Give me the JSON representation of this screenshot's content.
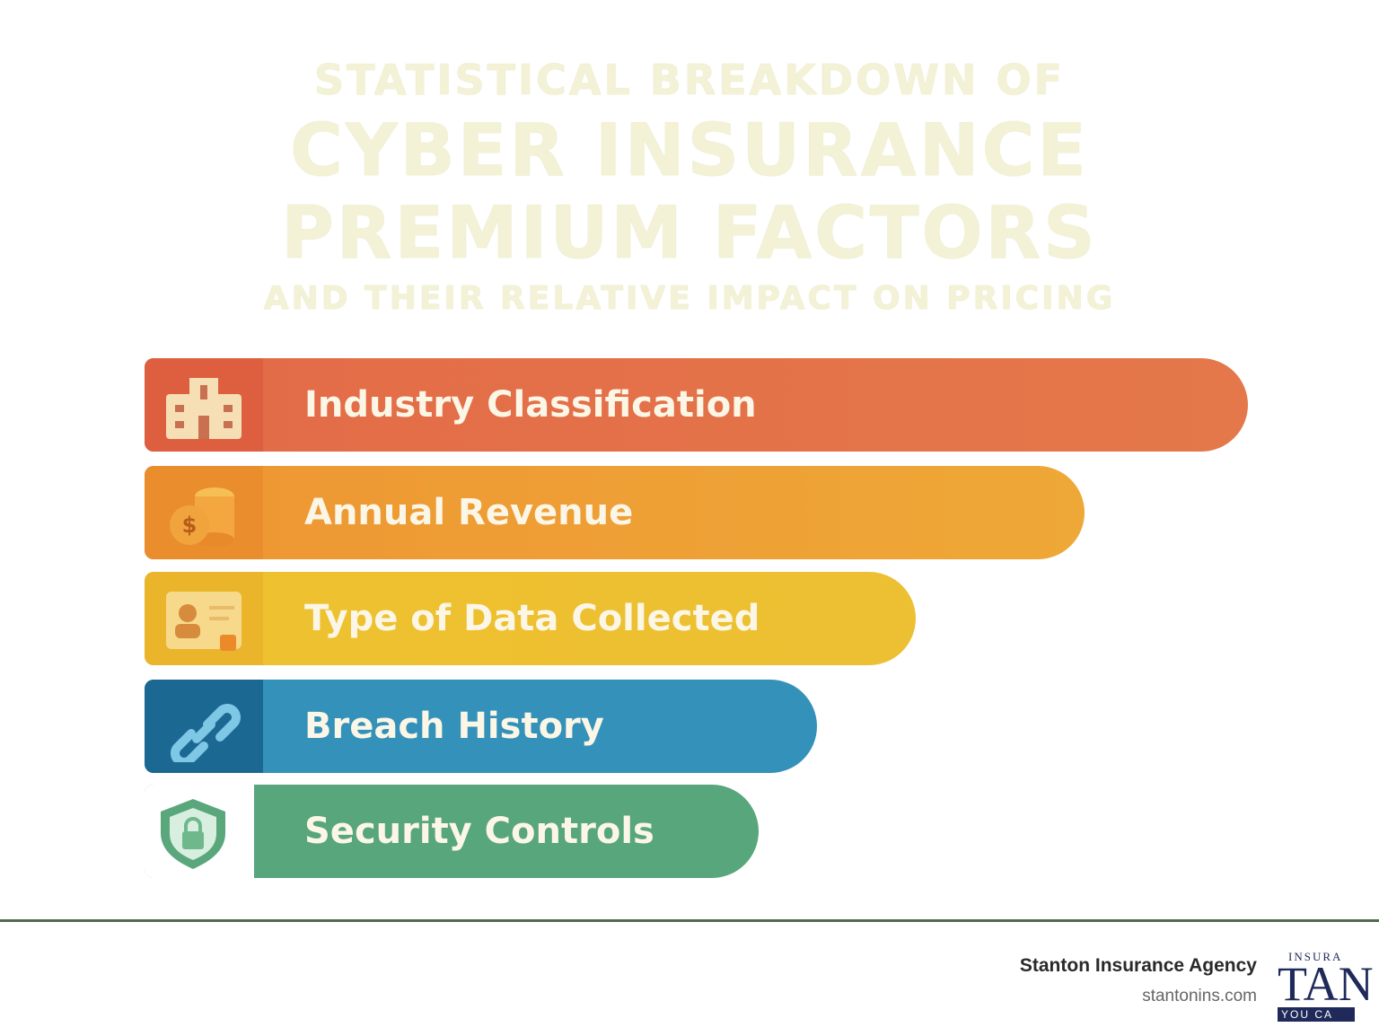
{
  "header": {
    "kicker": "STATISTICAL BREAKDOWN OF",
    "title": "CYBER INSURANCE PREMIUM FACTORS",
    "subtitle": "AND THEIR RELATIVE IMPACT ON PRICING"
  },
  "factors": [
    {
      "label": "Industry Classification"
    },
    {
      "label": "Annual Revenue"
    },
    {
      "label": "Type of Data Collected"
    },
    {
      "label": "Breach History"
    },
    {
      "label": "Security Controls"
    }
  ],
  "footer": {
    "agency": "Stanton Insurance Agency",
    "website": "stantonins.com",
    "logo_top": "INSURA",
    "logo_main": "TAN",
    "logo_bottom": "YOU CA"
  }
}
